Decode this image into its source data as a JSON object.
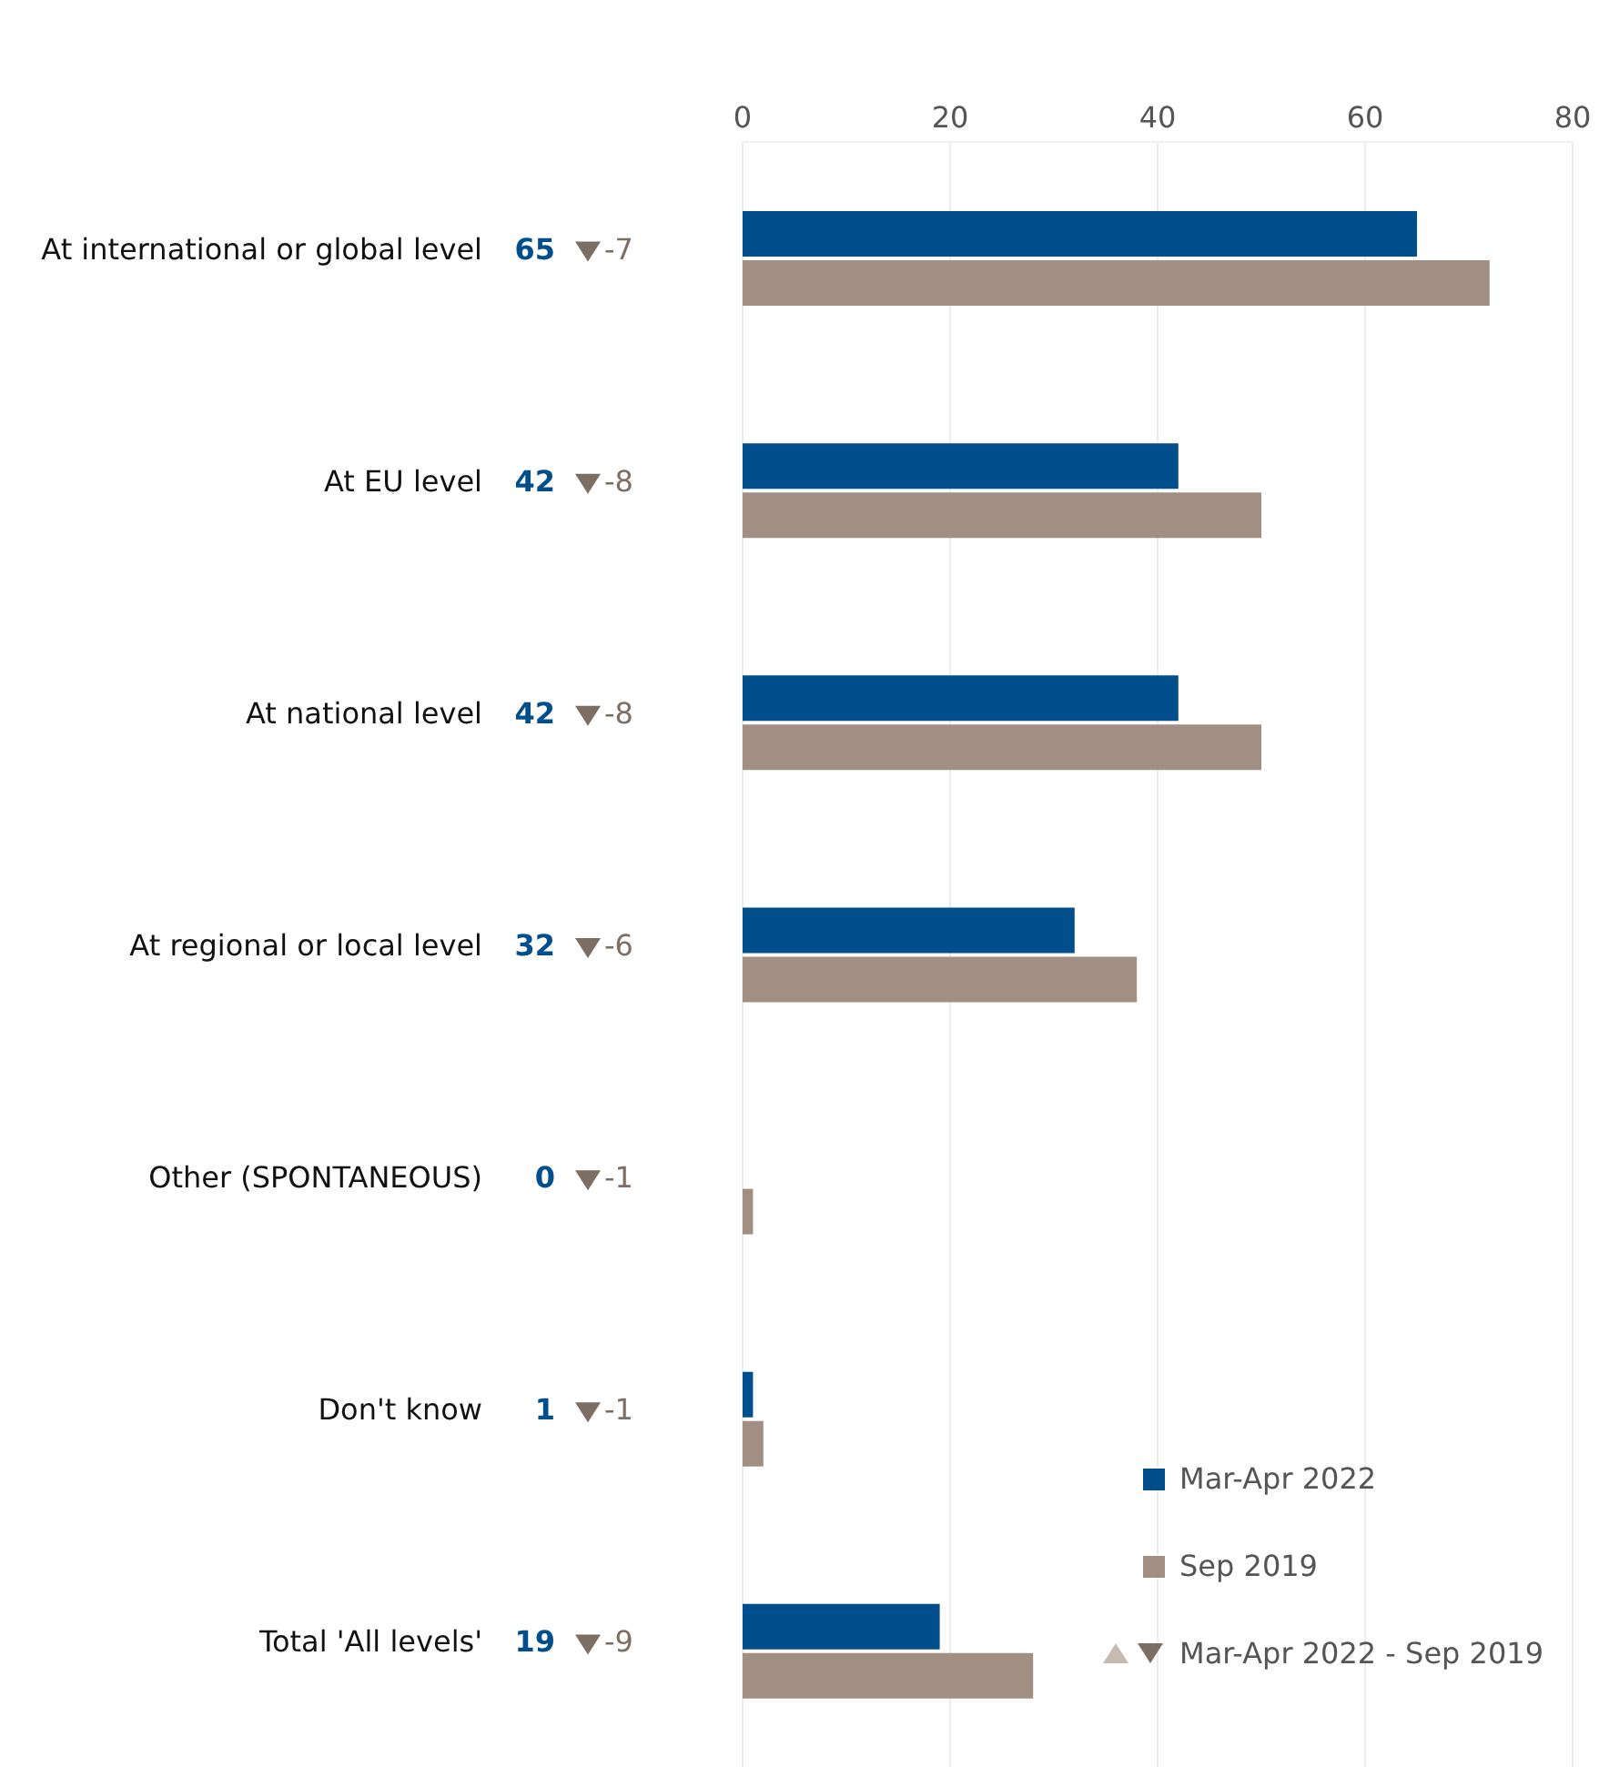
{
  "chart_data": {
    "type": "bar",
    "orientation": "horizontal",
    "categories": [
      "At international or global level",
      "At EU level",
      "At national level",
      "At regional or local level",
      "Other (SPONTANEOUS)",
      "Don't know",
      "Total 'All levels'"
    ],
    "series": [
      {
        "name": "Mar-Apr 2022",
        "color": "#004f8c",
        "values": [
          65,
          42,
          42,
          32,
          0,
          1,
          19
        ],
        "value_labels": [
          "65",
          "42",
          "42",
          "32",
          "0",
          "1",
          "19"
        ]
      },
      {
        "name": "Sep 2019",
        "color": "#a08f82",
        "values": [
          72,
          50,
          50,
          38,
          1,
          2,
          28
        ]
      }
    ],
    "x2lim": [
      0,
      80
    ],
    "x2ticks": [
      0,
      20,
      40,
      60,
      80
    ],
    "grid": "x",
    "legend": "bottom right",
    "annotations": [
      "-7",
      "-8",
      "-8",
      "-6",
      "-1",
      "-1",
      "-9",
      "Mar-Apr 2022 - Sep 2019"
    ]
  }
}
